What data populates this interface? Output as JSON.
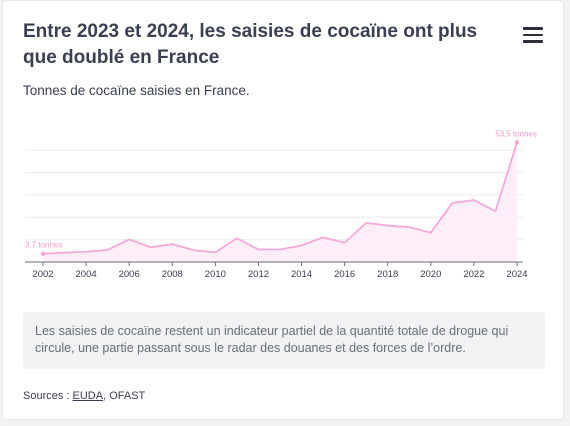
{
  "header": {
    "title": "Entre 2023 et 2024, les saisies de cocaïne ont plus que doublé en France",
    "subtitle": "Tonnes de cocaïne saisies en France.",
    "menu_icon": "hamburger-menu-icon"
  },
  "note": {
    "text": "Les saisies de cocaïne restent un indicateur partiel de la quantité totale de drogue qui circule, une partie passant sous le radar des douanes et des forces de l’ordre."
  },
  "sources": {
    "prefix": "Sources : ",
    "link": "EUDA",
    "rest": ", OFAST"
  },
  "chart_data": {
    "type": "area",
    "title": "",
    "xlabel": "",
    "ylabel": "",
    "x": [
      2002,
      2003,
      2004,
      2005,
      2006,
      2007,
      2008,
      2009,
      2010,
      2011,
      2012,
      2013,
      2014,
      2015,
      2016,
      2017,
      2018,
      2019,
      2020,
      2021,
      2022,
      2023,
      2024
    ],
    "values": [
      3.7,
      4.2,
      4.6,
      5.4,
      10.1,
      6.6,
      8.0,
      5.3,
      4.3,
      10.6,
      5.6,
      5.6,
      7.4,
      11.0,
      8.6,
      17.5,
      16.3,
      15.6,
      13.1,
      26.4,
      27.7,
      22.7,
      53.5
    ],
    "ylim": [
      0,
      55
    ],
    "xticks": [
      "2002",
      "2004",
      "2006",
      "2008",
      "2010",
      "2012",
      "2014",
      "2016",
      "2018",
      "2020",
      "2022",
      "2024"
    ],
    "annotations": [
      {
        "x": 2002,
        "label": "3,7 tonnes"
      },
      {
        "x": 2024,
        "label": "53,5 tonnes"
      }
    ],
    "grid": true,
    "line_color": "#f4a9d8",
    "fill_color": "#fdeef7"
  }
}
